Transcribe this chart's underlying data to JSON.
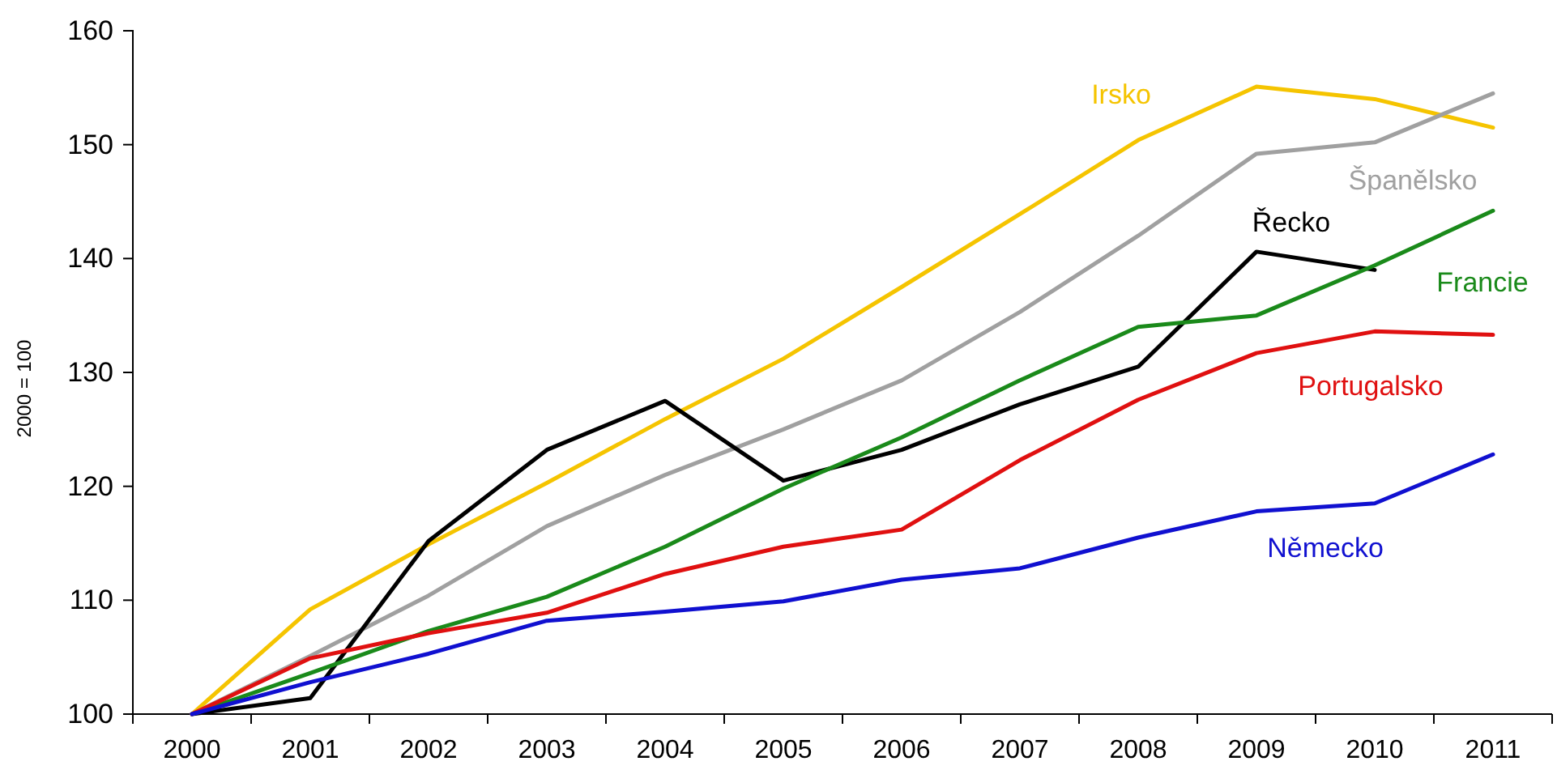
{
  "chart_data": {
    "type": "line",
    "ylabel": "2000 = 100",
    "categories": [
      "2000",
      "2001",
      "2002",
      "2003",
      "2004",
      "2005",
      "2006",
      "2007",
      "2008",
      "2009",
      "2010",
      "2011"
    ],
    "ylim": [
      100,
      160
    ],
    "yticks": [
      100,
      110,
      120,
      130,
      140,
      150,
      160
    ],
    "grid": false,
    "legend": false,
    "marker": "none",
    "line_style": "solid",
    "series": [
      {
        "name": "Irsko",
        "color": "#f5c400",
        "values": [
          100,
          109.2,
          114.9,
          120.3,
          125.9,
          131.2,
          137.5,
          143.9,
          150.4,
          155.1,
          154,
          151.5
        ]
      },
      {
        "name": "Španělsko",
        "color": "#a0a0a0",
        "values": [
          100,
          105.1,
          110.4,
          116.5,
          121,
          125,
          129.3,
          135.3,
          142,
          149.2,
          150.2,
          154.5
        ]
      },
      {
        "name": "Řecko",
        "color": "#000000",
        "values": [
          100,
          101.4,
          115.2,
          123.2,
          127.5,
          120.5,
          123.2,
          127.2,
          130.5,
          140.6,
          139,
          null
        ]
      },
      {
        "name": "Francie",
        "color": "#1a8a1a",
        "values": [
          100,
          103.6,
          107.3,
          110.3,
          114.7,
          119.8,
          124.3,
          129.3,
          134,
          135,
          139.4,
          144.2
        ]
      },
      {
        "name": "Portugalsko",
        "color": "#e01010",
        "values": [
          100,
          104.9,
          107.1,
          108.9,
          112.3,
          114.7,
          116.2,
          122.3,
          127.6,
          131.7,
          133.6,
          133.3
        ]
      },
      {
        "name": "Německo",
        "color": "#1010d0",
        "values": [
          100,
          102.8,
          105.3,
          108.2,
          109,
          109.9,
          111.8,
          112.8,
          115.5,
          117.8,
          118.5,
          122.8
        ]
      }
    ]
  }
}
